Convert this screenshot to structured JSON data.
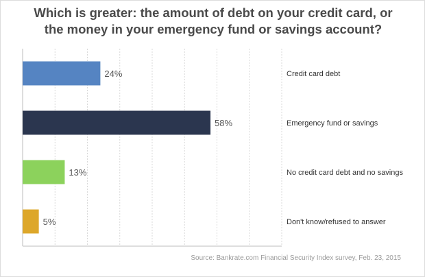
{
  "title_line1": "Which is greater: the amount of debt on your credit card, or",
  "title_line2": "the money in your emergency fund or savings account?",
  "source": "Source: Bankrate.com Financial Security Index survey, Feb. 23, 2015",
  "chart_data": {
    "type": "bar",
    "orientation": "horizontal",
    "categories": [
      "Credit card debt",
      "Emergency fund or savings",
      "No credit card debt and no savings",
      "Don't know/refused to answer"
    ],
    "values": [
      24,
      58,
      13,
      5
    ],
    "value_labels": [
      "24%",
      "58%",
      "13%",
      "5%"
    ],
    "colors": [
      "#5584c2",
      "#2b364f",
      "#8cd25c",
      "#dda72a"
    ],
    "xlim": [
      0,
      80
    ],
    "grid": true,
    "category_labels_position": "right"
  }
}
